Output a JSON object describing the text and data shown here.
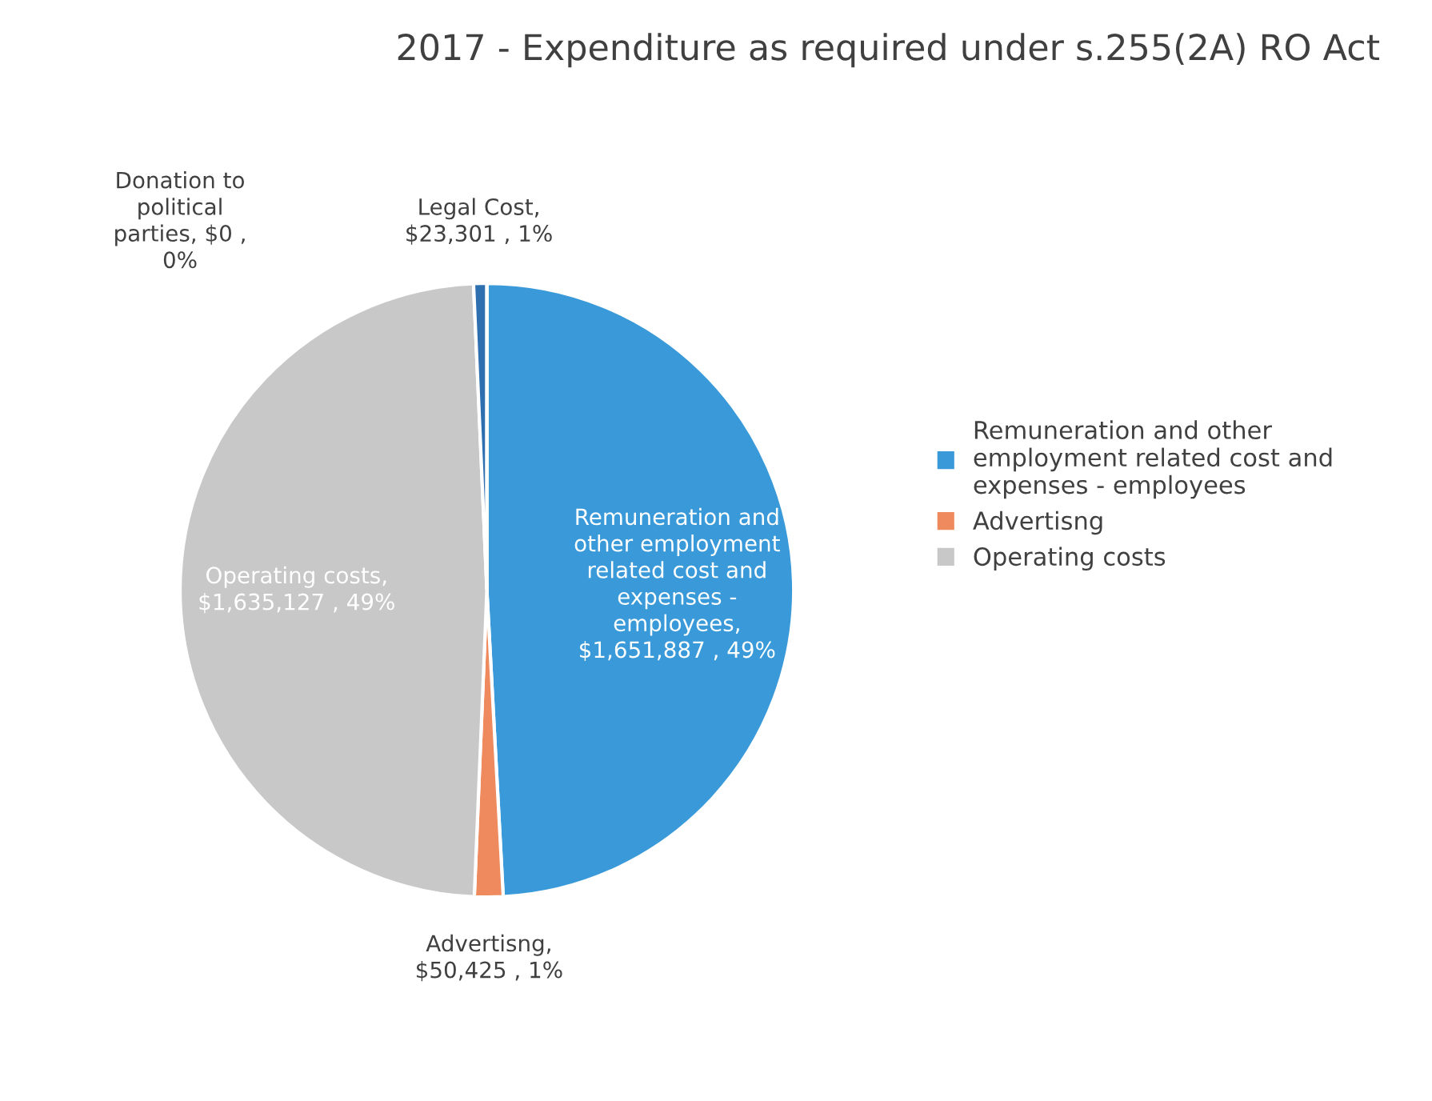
{
  "chart_data": {
    "type": "pie",
    "title": "2017 - Expenditure as required under s.255(2A) RO Act",
    "categories": [
      "Remuneration and other\nemployment related cost and\nexpenses - employees",
      "Advertisng",
      "Operating costs",
      null,
      null
    ],
    "values": [
      1651887,
      50425,
      1635127,
      23301,
      0
    ],
    "colors": [
      "#3a9ad9",
      "#ee8a5d",
      "#c8c8c8",
      "#2e6fb0",
      "#e8e8e8"
    ],
    "value_labels": [
      "Remuneration and\nother employment\nrelated cost and\nexpenses -\nemployees,\n$1,651,887 , 49%",
      "Advertisng,\n$50,425 , 1%",
      "Operating costs,\n$1,635,127 , 49%",
      "Legal Cost,\n$23,301 , 1%",
      "Donation to\npolitical\nparties, $0 ,\n0%"
    ],
    "legend": "right"
  }
}
